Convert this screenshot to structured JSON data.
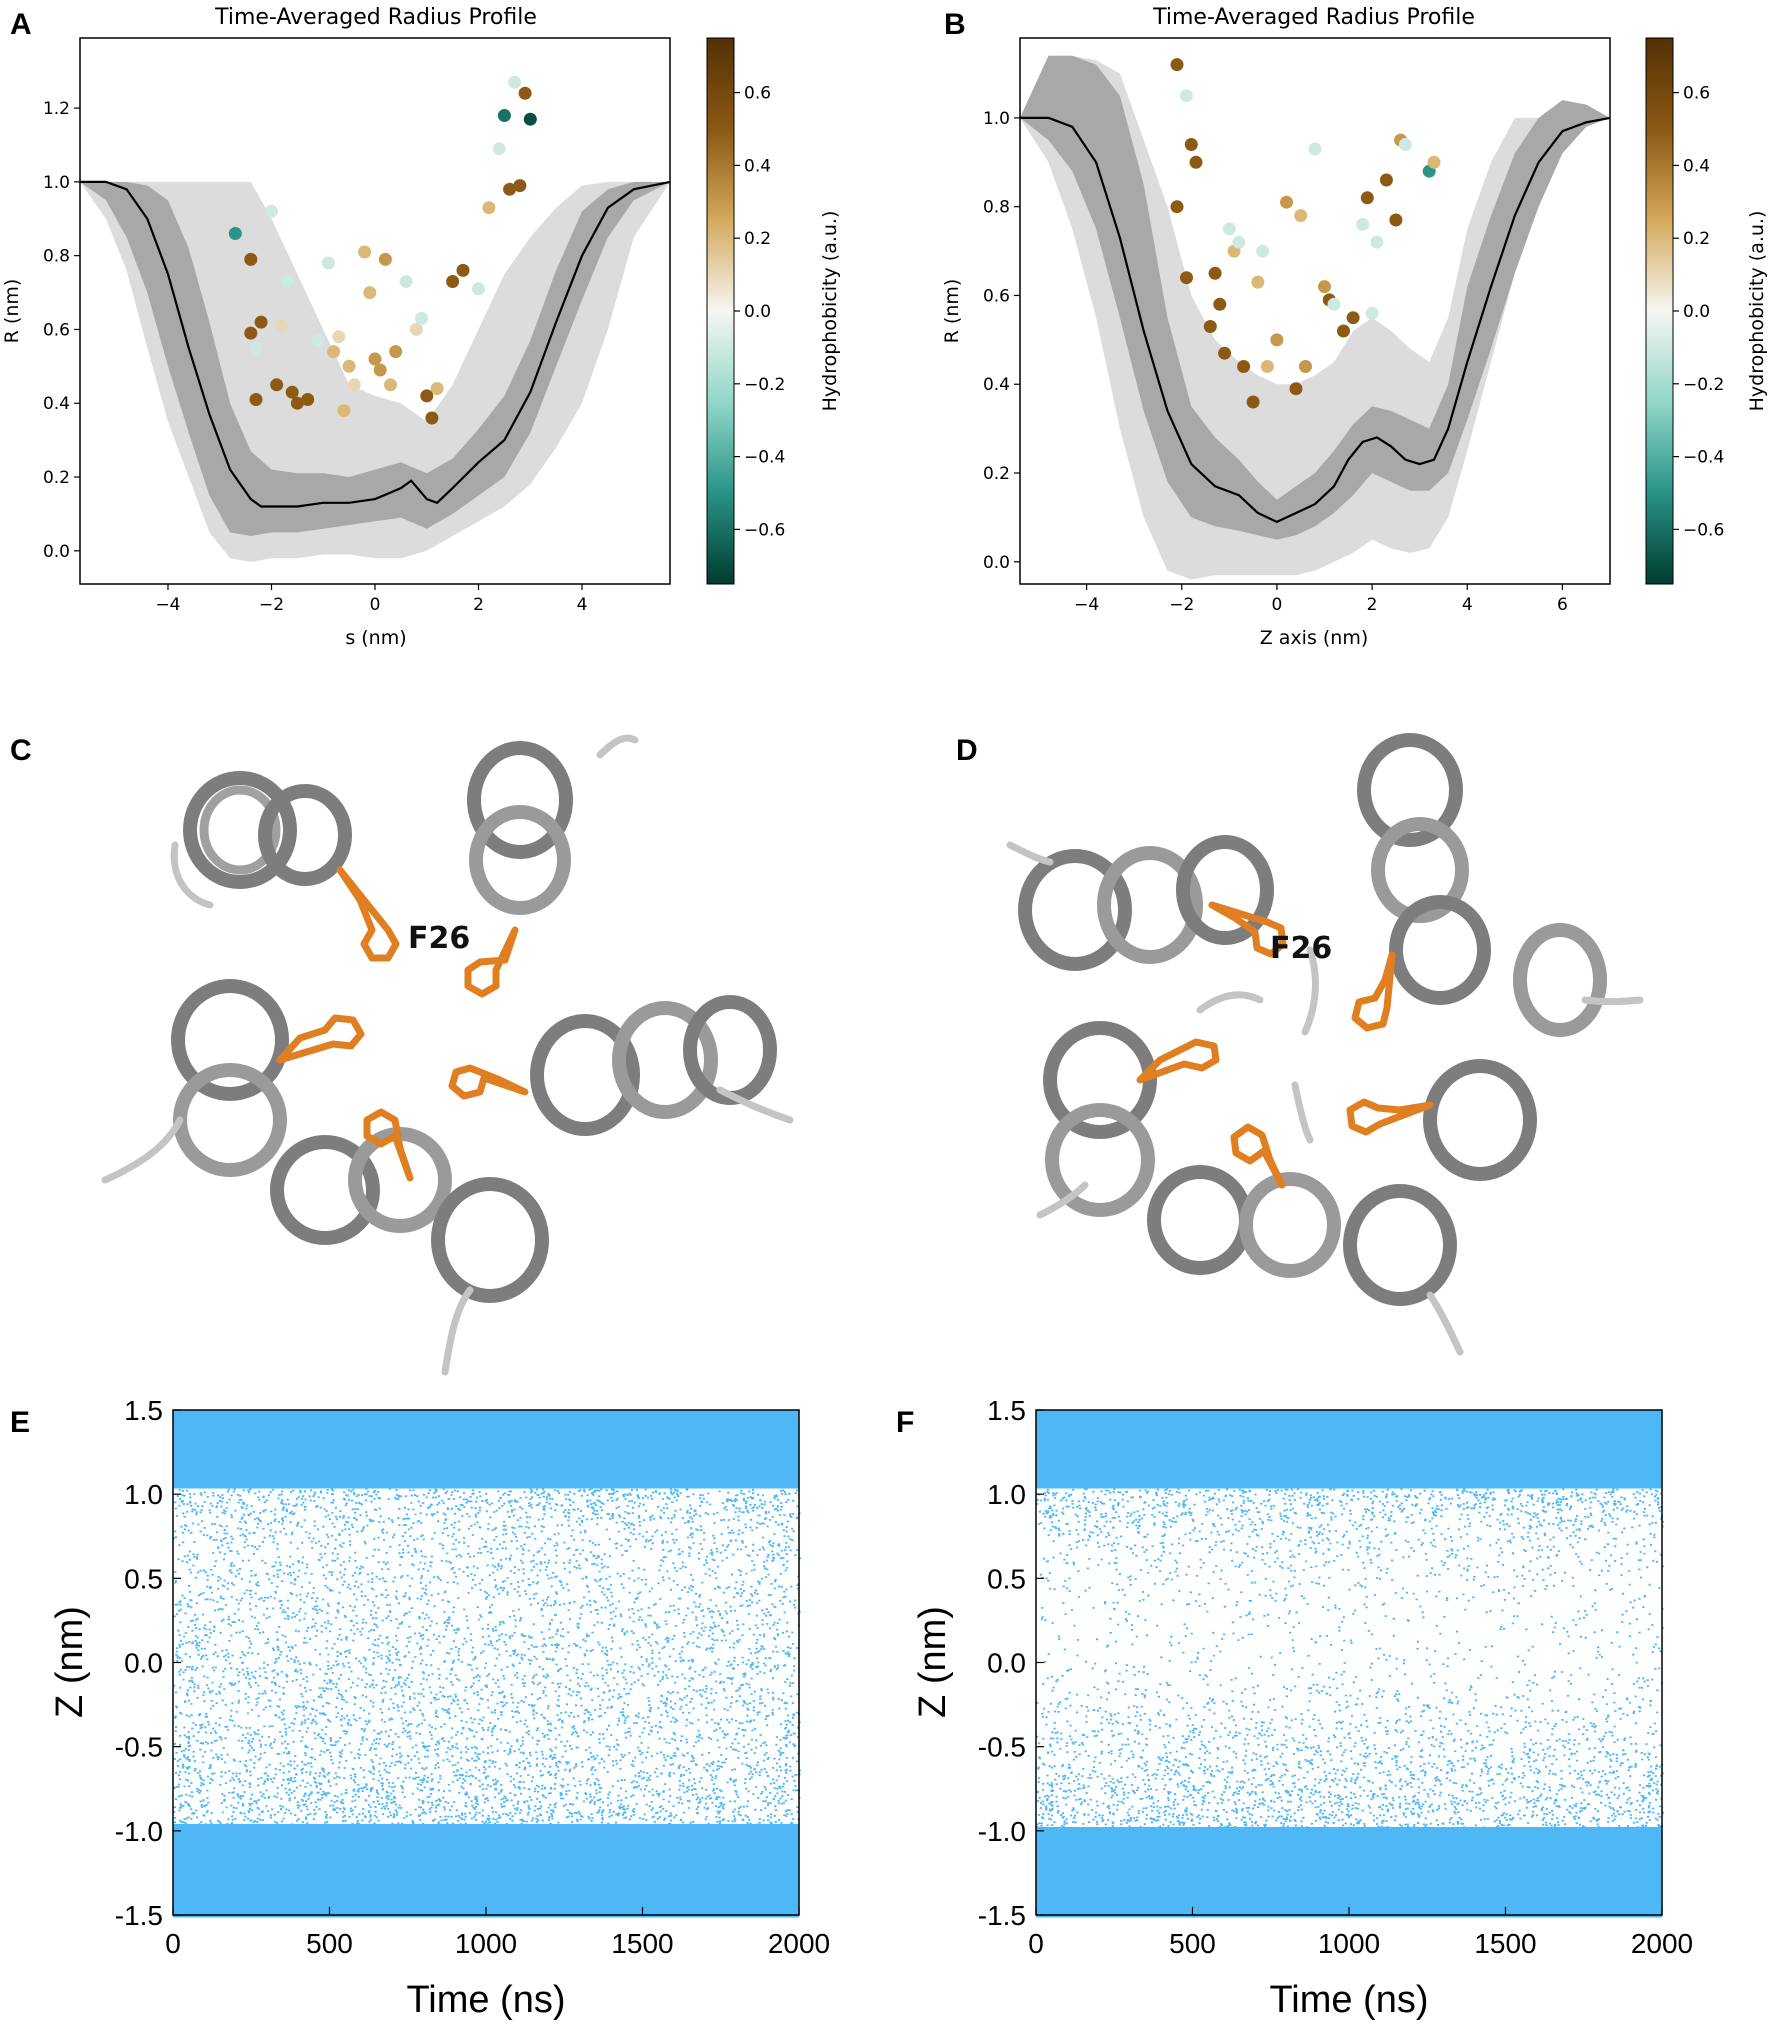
{
  "figure": {
    "panels": {
      "A": "A",
      "B": "B",
      "C": "C",
      "D": "D",
      "E": "E",
      "F": "F"
    },
    "colors": {
      "band_outer": "#dcdcdc",
      "band_inner": "#a8a8a8",
      "line": "#000000",
      "scatter_fill": "#4db8f5",
      "residue": "#e07f22",
      "helix": "#8a8a8a"
    }
  },
  "chart_data": [
    {
      "panel": "A",
      "type": "line",
      "title": "Time-Averaged Radius Profile",
      "xlabel": "s (nm)",
      "ylabel": "R (nm)",
      "xlim": [
        -5.7,
        5.7
      ],
      "ylim": [
        -0.09,
        1.39
      ],
      "xticks": [
        -4,
        -2,
        0,
        2,
        4
      ],
      "yticks": [
        0.0,
        0.2,
        0.4,
        0.6,
        0.8,
        1.0,
        1.2
      ],
      "mean_line": {
        "x": [
          -5.7,
          -5.2,
          -4.8,
          -4.4,
          -4.0,
          -3.6,
          -3.2,
          -2.8,
          -2.4,
          -2.2,
          -2.0,
          -1.5,
          -1.0,
          -0.5,
          0.0,
          0.5,
          0.7,
          1.0,
          1.2,
          1.5,
          2.0,
          2.5,
          3.0,
          3.5,
          4.0,
          4.5,
          5.0,
          5.7
        ],
        "y": [
          1.0,
          1.0,
          0.98,
          0.9,
          0.75,
          0.55,
          0.37,
          0.22,
          0.14,
          0.12,
          0.12,
          0.12,
          0.13,
          0.13,
          0.14,
          0.17,
          0.19,
          0.14,
          0.13,
          0.17,
          0.24,
          0.3,
          0.43,
          0.62,
          0.8,
          0.93,
          0.98,
          1.0
        ]
      },
      "sd_band": {
        "x": [
          -5.7,
          -5.2,
          -4.8,
          -4.4,
          -4.0,
          -3.6,
          -3.2,
          -2.8,
          -2.4,
          -2.0,
          -1.5,
          -1.0,
          -0.5,
          0.0,
          0.5,
          1.0,
          1.5,
          2.0,
          2.5,
          3.0,
          3.5,
          4.0,
          4.5,
          5.0,
          5.7
        ],
        "lower": [
          1.0,
          0.95,
          0.85,
          0.7,
          0.5,
          0.32,
          0.15,
          0.05,
          0.04,
          0.05,
          0.05,
          0.06,
          0.07,
          0.08,
          0.09,
          0.06,
          0.1,
          0.15,
          0.2,
          0.32,
          0.5,
          0.68,
          0.85,
          0.95,
          1.0
        ],
        "upper": [
          1.0,
          1.0,
          1.0,
          0.99,
          0.95,
          0.82,
          0.62,
          0.4,
          0.27,
          0.22,
          0.21,
          0.21,
          0.2,
          0.22,
          0.24,
          0.21,
          0.25,
          0.33,
          0.42,
          0.57,
          0.76,
          0.92,
          0.98,
          1.0,
          1.0
        ]
      },
      "range_band": {
        "x": [
          -5.7,
          -5.2,
          -4.8,
          -4.4,
          -4.0,
          -3.6,
          -3.2,
          -2.8,
          -2.4,
          -2.0,
          -1.5,
          -1.0,
          -0.5,
          0.0,
          0.5,
          1.0,
          1.5,
          2.0,
          2.5,
          3.0,
          3.5,
          4.0,
          4.5,
          5.0,
          5.7
        ],
        "lower": [
          1.0,
          0.9,
          0.76,
          0.55,
          0.35,
          0.2,
          0.05,
          -0.02,
          -0.03,
          -0.02,
          -0.02,
          -0.01,
          -0.01,
          -0.02,
          -0.02,
          0.0,
          0.04,
          0.08,
          0.12,
          0.18,
          0.28,
          0.4,
          0.6,
          0.85,
          1.0
        ],
        "upper": [
          1.0,
          1.0,
          1.0,
          1.0,
          1.0,
          1.0,
          1.0,
          1.0,
          1.0,
          0.9,
          0.75,
          0.6,
          0.45,
          0.42,
          0.4,
          0.35,
          0.45,
          0.6,
          0.75,
          0.85,
          0.93,
          0.99,
          1.0,
          1.0,
          1.0
        ]
      },
      "residues": {
        "x": [
          -2.7,
          -2.4,
          -2.4,
          -2.3,
          -2.2,
          -2.0,
          -1.9,
          -1.7,
          -1.6,
          -1.5,
          -1.3,
          -1.1,
          -0.9,
          -0.8,
          -0.6,
          -0.4,
          -0.2,
          0.0,
          0.1,
          0.2,
          0.4,
          0.6,
          0.8,
          1.0,
          1.1,
          1.5,
          1.7,
          2.0,
          2.2,
          2.4,
          2.5,
          2.6,
          2.7,
          2.8,
          2.9,
          3.0,
          -2.3,
          -1.8,
          -0.7,
          -0.5,
          0.3,
          0.9,
          -0.1,
          1.2
        ],
        "y": [
          0.86,
          0.79,
          0.59,
          0.41,
          0.62,
          0.92,
          0.45,
          0.73,
          0.43,
          0.4,
          0.41,
          0.57,
          0.78,
          0.54,
          0.38,
          0.45,
          0.81,
          0.52,
          0.49,
          0.79,
          0.54,
          0.73,
          0.6,
          0.42,
          0.36,
          0.73,
          0.76,
          0.71,
          0.93,
          1.09,
          1.18,
          0.98,
          1.27,
          0.99,
          1.24,
          1.17,
          0.55,
          0.61,
          0.58,
          0.5,
          0.45,
          0.63,
          0.7,
          0.44
        ],
        "h": [
          -0.5,
          0.5,
          0.5,
          0.5,
          0.5,
          -0.1,
          0.5,
          -0.1,
          0.5,
          0.5,
          0.5,
          -0.1,
          -0.1,
          0.2,
          0.2,
          0.1,
          0.2,
          0.3,
          0.3,
          0.3,
          0.3,
          -0.1,
          0.1,
          0.5,
          0.5,
          0.5,
          0.5,
          -0.1,
          0.2,
          -0.1,
          -0.6,
          0.5,
          -0.1,
          0.5,
          0.5,
          -0.7,
          -0.1,
          0.1,
          0.1,
          0.2,
          0.2,
          -0.1,
          0.2,
          0.2
        ]
      },
      "colorbar": {
        "label": "Hydrophobicity (a.u.)",
        "range": [
          -0.75,
          0.75
        ],
        "ticks": [
          "0.6",
          "0.4",
          "0.2",
          "0.0",
          "−0.2",
          "−0.4",
          "−0.6"
        ]
      }
    },
    {
      "panel": "B",
      "type": "line",
      "title": "Time-Averaged Radius Profile",
      "xlabel": "Z axis (nm)",
      "ylabel": "R (nm)",
      "xlim": [
        -5.4,
        7.0
      ],
      "ylim": [
        -0.05,
        1.18
      ],
      "xticks": [
        -4,
        -2,
        0,
        2,
        4,
        6
      ],
      "yticks": [
        0.0,
        0.2,
        0.4,
        0.6,
        0.8,
        1.0
      ],
      "mean_line": {
        "x": [
          -5.4,
          -4.8,
          -4.3,
          -3.8,
          -3.3,
          -2.8,
          -2.3,
          -1.8,
          -1.3,
          -0.8,
          -0.4,
          0.0,
          0.4,
          0.8,
          1.2,
          1.5,
          1.8,
          2.1,
          2.4,
          2.7,
          3.0,
          3.3,
          3.6,
          4.0,
          4.5,
          5.0,
          5.5,
          6.0,
          6.5,
          7.0
        ],
        "y": [
          1.0,
          1.0,
          0.98,
          0.9,
          0.73,
          0.52,
          0.34,
          0.22,
          0.17,
          0.15,
          0.11,
          0.09,
          0.11,
          0.13,
          0.17,
          0.23,
          0.27,
          0.28,
          0.26,
          0.23,
          0.22,
          0.23,
          0.3,
          0.45,
          0.62,
          0.78,
          0.9,
          0.97,
          0.99,
          1.0
        ]
      },
      "sd_band": {
        "x": [
          -5.4,
          -4.8,
          -4.3,
          -3.8,
          -3.3,
          -2.8,
          -2.3,
          -1.8,
          -1.3,
          -0.8,
          -0.4,
          0.0,
          0.4,
          0.8,
          1.2,
          1.6,
          2.0,
          2.4,
          2.8,
          3.2,
          3.6,
          4.0,
          4.5,
          5.0,
          5.5,
          6.0,
          6.5,
          7.0
        ],
        "lower": [
          1.0,
          0.95,
          0.88,
          0.75,
          0.55,
          0.34,
          0.18,
          0.1,
          0.08,
          0.07,
          0.06,
          0.05,
          0.06,
          0.08,
          0.11,
          0.15,
          0.2,
          0.18,
          0.16,
          0.16,
          0.2,
          0.32,
          0.48,
          0.65,
          0.8,
          0.92,
          0.98,
          1.0
        ],
        "upper": [
          1.0,
          1.14,
          1.14,
          1.12,
          1.05,
          0.85,
          0.55,
          0.35,
          0.28,
          0.23,
          0.18,
          0.14,
          0.17,
          0.2,
          0.25,
          0.31,
          0.35,
          0.34,
          0.32,
          0.3,
          0.4,
          0.62,
          0.78,
          0.92,
          1.0,
          1.04,
          1.03,
          1.0
        ]
      },
      "range_band": {
        "x": [
          -5.4,
          -4.8,
          -4.3,
          -3.8,
          -3.3,
          -2.8,
          -2.3,
          -1.8,
          -1.3,
          -0.8,
          -0.4,
          0.0,
          0.4,
          0.8,
          1.2,
          1.6,
          2.0,
          2.4,
          2.8,
          3.2,
          3.6,
          4.0,
          4.5,
          5.0,
          5.5,
          6.0,
          6.5,
          7.0
        ],
        "lower": [
          1.0,
          0.9,
          0.75,
          0.55,
          0.3,
          0.1,
          -0.02,
          -0.04,
          -0.03,
          -0.03,
          -0.03,
          -0.03,
          -0.03,
          -0.02,
          0.0,
          0.02,
          0.05,
          0.03,
          0.02,
          0.03,
          0.1,
          0.25,
          0.45,
          0.65,
          0.82,
          0.93,
          0.99,
          1.0
        ],
        "upper": [
          1.0,
          1.14,
          1.14,
          1.13,
          1.1,
          0.95,
          0.8,
          0.6,
          0.5,
          0.45,
          0.42,
          0.4,
          0.4,
          0.42,
          0.45,
          0.52,
          0.55,
          0.52,
          0.48,
          0.45,
          0.55,
          0.75,
          0.9,
          1.0,
          1.0,
          1.0,
          1.0,
          1.0
        ]
      },
      "residues": {
        "x": [
          -2.1,
          -2.1,
          -1.9,
          -1.8,
          -1.7,
          -1.4,
          -1.3,
          -1.2,
          -1.1,
          -0.9,
          -0.7,
          -0.5,
          -0.4,
          -0.2,
          0.0,
          0.2,
          0.4,
          0.6,
          0.8,
          1.0,
          1.1,
          1.4,
          1.6,
          1.8,
          1.9,
          2.1,
          2.3,
          2.5,
          2.6,
          2.7,
          3.2,
          3.3,
          -1.9,
          -1.0,
          -0.8,
          -0.3,
          0.5,
          1.2,
          2.0
        ],
        "y": [
          1.12,
          0.8,
          0.64,
          0.94,
          0.9,
          0.53,
          0.65,
          0.58,
          0.47,
          0.7,
          0.44,
          0.36,
          0.63,
          0.44,
          0.5,
          0.81,
          0.39,
          0.44,
          0.93,
          0.62,
          0.59,
          0.52,
          0.55,
          0.76,
          0.82,
          0.72,
          0.86,
          0.77,
          0.95,
          0.94,
          0.88,
          0.9,
          1.05,
          0.75,
          0.72,
          0.7,
          0.78,
          0.58,
          0.56
        ],
        "h": [
          0.5,
          0.5,
          0.5,
          0.5,
          0.5,
          0.5,
          0.5,
          0.5,
          0.5,
          0.2,
          0.5,
          0.5,
          0.2,
          0.2,
          0.3,
          0.3,
          0.5,
          0.3,
          -0.1,
          0.3,
          0.5,
          0.5,
          0.5,
          -0.1,
          0.5,
          -0.1,
          0.5,
          0.5,
          0.3,
          -0.1,
          -0.5,
          0.2,
          -0.1,
          -0.1,
          -0.1,
          -0.1,
          0.2,
          -0.1,
          -0.1
        ]
      },
      "colorbar": {
        "label": "Hydrophobicity (a.u.)",
        "range": [
          -0.75,
          0.75
        ],
        "ticks": [
          "0.6",
          "0.4",
          "0.2",
          "0.0",
          "−0.2",
          "−0.4",
          "−0.6"
        ]
      }
    },
    {
      "panel": "E",
      "type": "scatter",
      "xlabel": "Time (ns)",
      "ylabel": "Z (nm)",
      "xlim": [
        0,
        2000
      ],
      "ylim": [
        -1.5,
        1.5
      ],
      "xticks": [
        "0",
        "500",
        "1000",
        "1500",
        "2000"
      ],
      "yticks": [
        "1.5",
        "1.0",
        "0.5",
        "0.0",
        "-0.5",
        "-1.0",
        "-1.5"
      ],
      "density_profile": {
        "z": [
          -1.5,
          -1.0,
          -0.8,
          -0.5,
          -0.2,
          0.0,
          0.2,
          0.5,
          0.8,
          0.9,
          1.0,
          1.1,
          1.5
        ],
        "density": [
          1.0,
          1.0,
          0.85,
          0.6,
          0.55,
          0.55,
          0.5,
          0.45,
          0.5,
          0.75,
          0.95,
          1.0,
          1.0
        ]
      }
    },
    {
      "panel": "F",
      "type": "scatter",
      "xlabel": "Time (ns)",
      "ylabel": "Z (nm)",
      "xlim": [
        0,
        2000
      ],
      "ylim": [
        -1.5,
        1.5
      ],
      "xticks": [
        "0",
        "500",
        "1000",
        "1500",
        "2000"
      ],
      "yticks": [
        "1.5",
        "1.0",
        "0.5",
        "0.0",
        "-0.5",
        "-1.0",
        "-1.5"
      ],
      "density_profile": {
        "z": [
          -1.5,
          -1.0,
          -0.8,
          -0.5,
          -0.2,
          0.0,
          0.2,
          0.5,
          0.8,
          0.9,
          1.0,
          1.1,
          1.5
        ],
        "density": [
          1.0,
          1.0,
          0.8,
          0.5,
          0.25,
          0.12,
          0.12,
          0.2,
          0.45,
          0.75,
          0.95,
          1.0,
          1.0
        ]
      }
    }
  ],
  "structures": {
    "C": {
      "residue_label": "F26",
      "n_helices": 5
    },
    "D": {
      "residue_label": "F26",
      "n_helices": 5
    }
  }
}
